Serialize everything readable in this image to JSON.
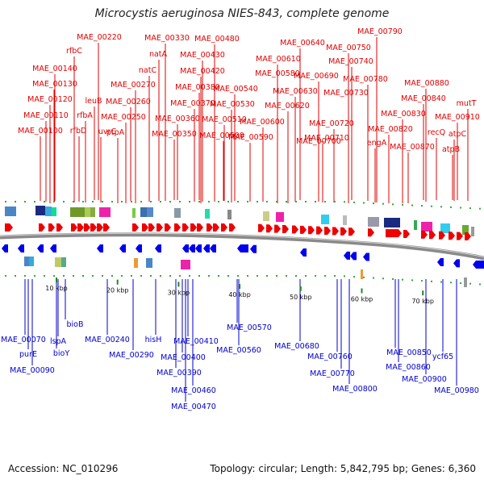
{
  "title": "Microcystis aeruginosa NIES-843, complete genome",
  "accession": "Accession: NC_010296",
  "summary": "Topology: circular; Length: 5,842,795 bp; Genes: 6,360",
  "colors": {
    "upper_label": "#e00000",
    "lower_label": "#0000cc",
    "forward_gene": "#ee0000",
    "reverse_gene": "#0000ee",
    "backbone": "#888888"
  },
  "upper_labels": [
    {
      "text": "MAE_00220",
      "tick": 20
    },
    {
      "text": "MAE_00330",
      "tick": 35
    },
    {
      "text": "MAE_00480",
      "tick": 45
    },
    {
      "text": "MAE_00790",
      "tick": 80
    },
    {
      "text": "MAE_00750",
      "tick": 75
    },
    {
      "text": "MAE_00640",
      "tick": 65
    },
    {
      "text": "natA",
      "tick": 33
    },
    {
      "text": "MAE_00430",
      "tick": 43
    },
    {
      "text": "rfbC",
      "tick": 15
    },
    {
      "text": "MAE_00610",
      "tick": 61
    },
    {
      "text": "MAE_00740",
      "tick": 74
    },
    {
      "text": "MAE_00140",
      "tick": 14
    },
    {
      "text": "natC",
      "tick": 34
    },
    {
      "text": "MAE_00580",
      "tick": 58
    },
    {
      "text": "MAE_00420",
      "tick": 42
    },
    {
      "text": "MAE_00690",
      "tick": 69
    },
    {
      "text": "MAE_00780",
      "tick": 78
    },
    {
      "text": "MAE_00880",
      "tick": 88
    },
    {
      "text": "MAE_00130",
      "tick": 13
    },
    {
      "text": "MAE_00270",
      "tick": 27
    },
    {
      "text": "MAE_00380",
      "tick": 38
    },
    {
      "text": "MAE_00540",
      "tick": 54
    },
    {
      "text": "MAE_00630",
      "tick": 63
    },
    {
      "text": "MAE_00730",
      "tick": 73
    },
    {
      "text": "MAE_00120",
      "tick": 12
    },
    {
      "text": "leuB",
      "tick": 18
    },
    {
      "text": "MAE_00260",
      "tick": 26
    },
    {
      "text": "MAE_00370",
      "tick": 37
    },
    {
      "text": "MAE_00530",
      "tick": 53
    },
    {
      "text": "MAE_00620",
      "tick": 62
    },
    {
      "text": "MAE_00840",
      "tick": 84
    },
    {
      "text": "mutT",
      "tick": 95
    },
    {
      "text": "MAE_00110",
      "tick": 11
    },
    {
      "text": "rfbA",
      "tick": 16
    },
    {
      "text": "MAE_00250",
      "tick": 25
    },
    {
      "text": "MAE_00360",
      "tick": 36
    },
    {
      "text": "MAE_00510",
      "tick": 51
    },
    {
      "text": "MAE_00600",
      "tick": 60
    },
    {
      "text": "MAE_00720",
      "tick": 72
    },
    {
      "text": "MAE_00830",
      "tick": 83
    },
    {
      "text": "MAE_00910",
      "tick": 91
    },
    {
      "text": "MAE_00100",
      "tick": 10
    },
    {
      "text": "rfbD",
      "tick": 17
    },
    {
      "text": "uvrC",
      "tick": 19
    },
    {
      "text": "ptpA",
      "tick": 24
    },
    {
      "text": "MAE_00350",
      "tick": 35
    },
    {
      "text": "MAE_00500",
      "tick": 50
    },
    {
      "text": "MAE_00590",
      "tick": 59
    },
    {
      "text": "MAE_00710",
      "tick": 71
    },
    {
      "text": "MAE_00820",
      "tick": 82
    },
    {
      "text": "recQ",
      "tick": 86
    },
    {
      "text": "atpC",
      "tick": 92
    },
    {
      "text": "MAE_00700",
      "tick": 70
    },
    {
      "text": "engA",
      "tick": 79
    },
    {
      "text": "MAE_00870",
      "tick": 87
    },
    {
      "text": "atpB",
      "tick": 89
    }
  ],
  "lower_labels": [
    {
      "text": "bioB",
      "tick": 8
    },
    {
      "text": "MAE_00240",
      "tick": 24
    },
    {
      "text": "hisH",
      "tick": 29
    },
    {
      "text": "MAE_00570",
      "tick": 57
    },
    {
      "text": "MAE_00680",
      "tick": 68
    },
    {
      "text": "MAE_00070",
      "tick": 7
    },
    {
      "text": "lspA",
      "tick": 5
    },
    {
      "text": "MAE_00410",
      "tick": 41
    },
    {
      "text": "MAE_00850",
      "tick": 85
    },
    {
      "text": "purE",
      "tick": 4
    },
    {
      "text": "bioY",
      "tick": 6
    },
    {
      "text": "MAE_00290",
      "tick": 29
    },
    {
      "text": "MAE_00560",
      "tick": 56
    },
    {
      "text": "MAE_00760",
      "tick": 76
    },
    {
      "text": "ycf65",
      "tick": 65
    },
    {
      "text": "MAE_00400",
      "tick": 40
    },
    {
      "text": "MAE_00860",
      "tick": 86
    },
    {
      "text": "MAE_00090",
      "tick": 9
    },
    {
      "text": "MAE_00390",
      "tick": 39
    },
    {
      "text": "MAE_00770",
      "tick": 77
    },
    {
      "text": "MAE_00900",
      "tick": 90
    },
    {
      "text": "MAE_00980",
      "tick": 98
    },
    {
      "text": "MAE_00800",
      "tick": 80
    },
    {
      "text": "MAE_00460",
      "tick": 46
    },
    {
      "text": "MAE_00470",
      "tick": 47
    }
  ],
  "scale_ticks": [
    {
      "label": "10 kbp",
      "kbp": 10
    },
    {
      "label": "20 kbp",
      "kbp": 20
    },
    {
      "label": "30 kbp",
      "kbp": 30
    },
    {
      "label": "40 kbp",
      "kbp": 40
    },
    {
      "label": "50 kbp",
      "kbp": 50
    },
    {
      "label": "60 kbp",
      "kbp": 60
    },
    {
      "label": "70 kbp",
      "kbp": 70
    }
  ]
}
